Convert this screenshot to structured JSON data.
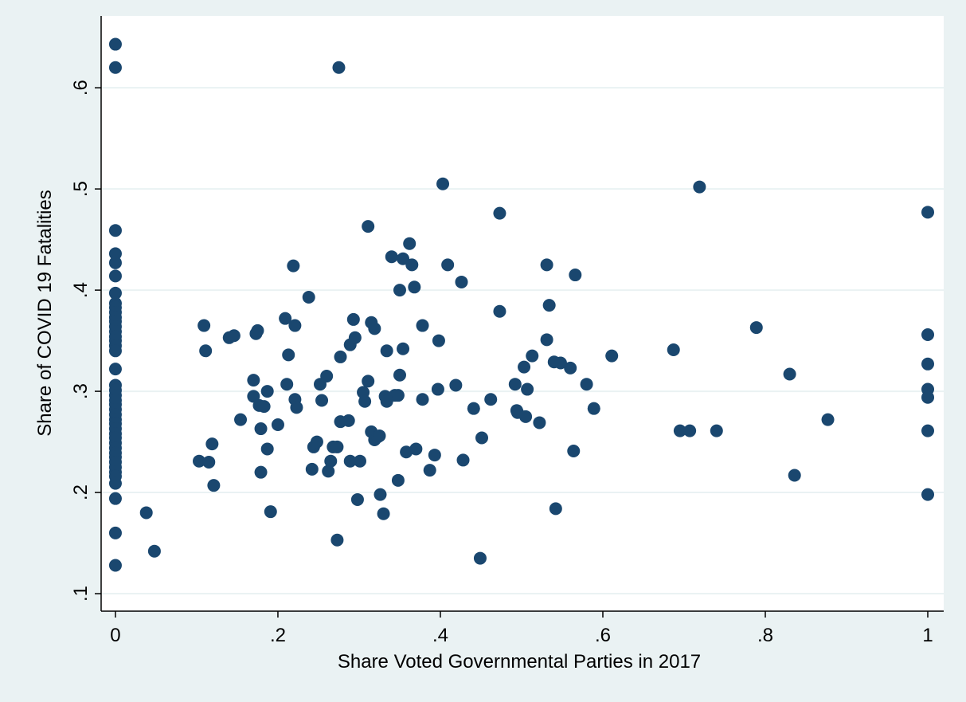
{
  "chart_data": {
    "type": "scatter",
    "xlabel": "Share Voted Governmental Parties in 2017",
    "ylabel": "Share of COVID 19 Fatalities",
    "color": "#1a476f",
    "grid": true,
    "xlim": [
      -0.0176,
      1.0196
    ],
    "ylim": [
      0.0827,
      0.671
    ],
    "xticks": [
      0,
      {
        "value": 0.2,
        "label": ".2"
      },
      {
        "value": 0.4,
        "label": ".4"
      },
      {
        "value": 0.6,
        "label": ".6"
      },
      {
        "value": 0.8,
        "label": ".8"
      },
      1
    ],
    "yticks": [
      {
        "value": 0.1,
        "label": ".1"
      },
      {
        "value": 0.2,
        "label": ".2"
      },
      {
        "value": 0.3,
        "label": ".3"
      },
      {
        "value": 0.4,
        "label": ".4"
      },
      {
        "value": 0.5,
        "label": ".5"
      },
      {
        "value": 0.6,
        "label": ".6"
      }
    ],
    "x": [
      0,
      0,
      0,
      0,
      0,
      0,
      0,
      0,
      0,
      0,
      0,
      0,
      0,
      0,
      0,
      0,
      0,
      0,
      0,
      0,
      0,
      0,
      0,
      0,
      0,
      0,
      0,
      0,
      0,
      0,
      0,
      0,
      0,
      0,
      0,
      0,
      0,
      0,
      0,
      0,
      0,
      0,
      0,
      0.038,
      0.048,
      0.103,
      0.109,
      0.111,
      0.115,
      0.119,
      0.121,
      0.14,
      0.146,
      0.154,
      0.17,
      0.17,
      0.173,
      0.175,
      0.177,
      0.179,
      0.179,
      0.183,
      0.187,
      0.187,
      0.191,
      0.2,
      0.209,
      0.211,
      0.213,
      0.219,
      0.221,
      0.221,
      0.223,
      0.238,
      0.242,
      0.244,
      0.248,
      0.252,
      0.254,
      0.26,
      0.262,
      0.265,
      0.268,
      0.273,
      0.273,
      0.275,
      0.277,
      0.277,
      0.287,
      0.289,
      0.289,
      0.293,
      0.295,
      0.298,
      0.301,
      0.305,
      0.307,
      0.311,
      0.311,
      0.315,
      0.315,
      0.319,
      0.319,
      0.323,
      0.325,
      0.326,
      0.33,
      0.332,
      0.334,
      0.334,
      0.34,
      0.344,
      0.348,
      0.348,
      0.35,
      0.35,
      0.354,
      0.354,
      0.358,
      0.362,
      0.365,
      0.368,
      0.37,
      0.378,
      0.378,
      0.387,
      0.393,
      0.397,
      0.398,
      0.403,
      0.409,
      0.419,
      0.426,
      0.428,
      0.441,
      0.449,
      0.451,
      0.462,
      0.473,
      0.473,
      0.492,
      0.494,
      0.495,
      0.503,
      0.505,
      0.507,
      0.513,
      0.522,
      0.531,
      0.531,
      0.534,
      0.54,
      0.542,
      0.548,
      0.56,
      0.564,
      0.566,
      0.58,
      0.589,
      0.611,
      0.687,
      0.695,
      0.707,
      0.719,
      0.74,
      0.789,
      0.83,
      0.836,
      0.877,
      1,
      1,
      1,
      1,
      1,
      1,
      1
    ],
    "y": [
      0.643,
      0.62,
      0.459,
      0.436,
      0.427,
      0.414,
      0.397,
      0.387,
      0.383,
      0.378,
      0.373,
      0.369,
      0.364,
      0.359,
      0.354,
      0.35,
      0.345,
      0.34,
      0.322,
      0.306,
      0.301,
      0.296,
      0.291,
      0.287,
      0.282,
      0.277,
      0.272,
      0.268,
      0.263,
      0.258,
      0.254,
      0.249,
      0.244,
      0.239,
      0.235,
      0.23,
      0.225,
      0.22,
      0.216,
      0.209,
      0.194,
      0.16,
      0.128,
      0.18,
      0.142,
      0.231,
      0.365,
      0.34,
      0.23,
      0.248,
      0.207,
      0.353,
      0.355,
      0.272,
      0.311,
      0.295,
      0.357,
      0.36,
      0.286,
      0.263,
      0.22,
      0.285,
      0.3,
      0.243,
      0.181,
      0.267,
      0.372,
      0.307,
      0.336,
      0.424,
      0.365,
      0.292,
      0.284,
      0.393,
      0.223,
      0.245,
      0.25,
      0.307,
      0.291,
      0.315,
      0.221,
      0.231,
      0.245,
      0.245,
      0.153,
      0.62,
      0.334,
      0.27,
      0.271,
      0.231,
      0.346,
      0.371,
      0.353,
      0.193,
      0.231,
      0.299,
      0.29,
      0.463,
      0.31,
      0.368,
      0.26,
      0.362,
      0.252,
      0.255,
      0.256,
      0.198,
      0.179,
      0.295,
      0.29,
      0.34,
      0.433,
      0.296,
      0.296,
      0.212,
      0.316,
      0.4,
      0.431,
      0.342,
      0.24,
      0.446,
      0.425,
      0.403,
      0.243,
      0.365,
      0.292,
      0.222,
      0.237,
      0.302,
      0.35,
      0.505,
      0.425,
      0.306,
      0.408,
      0.232,
      0.283,
      0.135,
      0.254,
      0.292,
      0.476,
      0.379,
      0.307,
      0.281,
      0.279,
      0.324,
      0.275,
      0.302,
      0.335,
      0.269,
      0.425,
      0.351,
      0.385,
      0.329,
      0.184,
      0.328,
      0.323,
      0.241,
      0.415,
      0.307,
      0.283,
      0.335,
      0.341,
      0.261,
      0.261,
      0.502,
      0.261,
      0.363,
      0.317,
      0.217,
      0.272,
      0.477,
      0.356,
      0.327,
      0.302,
      0.294,
      0.261,
      0.198
    ]
  }
}
